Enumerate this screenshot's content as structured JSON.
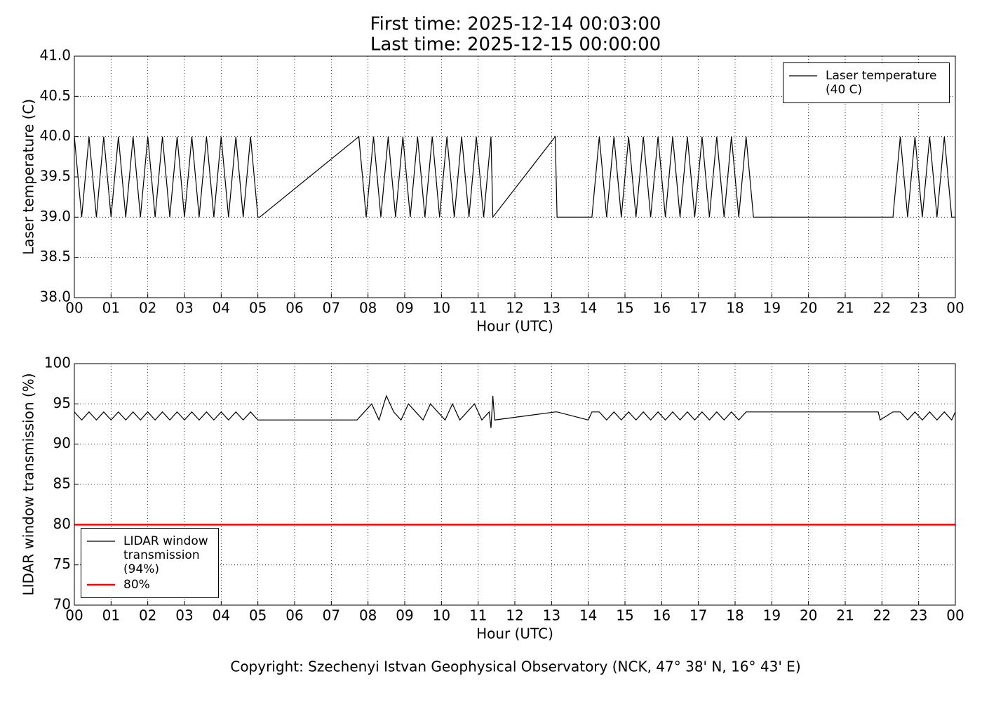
{
  "footer": "Copyright: Szechenyi Istvan Geophysical Observatory (NCK, 47° 38' N, 16° 43' E)",
  "chart_data": [
    {
      "type": "line",
      "title": "First time: 2025-12-14 00:03:00",
      "subtitle": "Last time: 2025-12-15 00:00:00",
      "xlabel": "Hour (UTC)",
      "ylabel": "Laser temperature (C)",
      "grid": true,
      "legend": "upper right",
      "xlim": [
        0,
        24
      ],
      "ylim": [
        38,
        41
      ],
      "xticks": [
        {
          "value": 0,
          "label": "00"
        },
        {
          "value": 1,
          "label": "01"
        },
        {
          "value": 2,
          "label": "02"
        },
        {
          "value": 3,
          "label": "03"
        },
        {
          "value": 4,
          "label": "04"
        },
        {
          "value": 5,
          "label": "05"
        },
        {
          "value": 6,
          "label": "06"
        },
        {
          "value": 7,
          "label": "07"
        },
        {
          "value": 8,
          "label": "08"
        },
        {
          "value": 9,
          "label": "09"
        },
        {
          "value": 10,
          "label": "10"
        },
        {
          "value": 11,
          "label": "11"
        },
        {
          "value": 12,
          "label": "12"
        },
        {
          "value": 13,
          "label": "13"
        },
        {
          "value": 14,
          "label": "14"
        },
        {
          "value": 15,
          "label": "15"
        },
        {
          "value": 16,
          "label": "16"
        },
        {
          "value": 17,
          "label": "17"
        },
        {
          "value": 18,
          "label": "18"
        },
        {
          "value": 19,
          "label": "19"
        },
        {
          "value": 20,
          "label": "20"
        },
        {
          "value": 21,
          "label": "21"
        },
        {
          "value": 22,
          "label": "22"
        },
        {
          "value": 23,
          "label": "23"
        },
        {
          "value": 24,
          "label": "00"
        }
      ],
      "yticks": [
        {
          "value": 38,
          "label": "38.0"
        },
        {
          "value": 38.5,
          "label": "38.5"
        },
        {
          "value": 39,
          "label": "39.0"
        },
        {
          "value": 39.5,
          "label": "39.5"
        },
        {
          "value": 40,
          "label": "40.0"
        },
        {
          "value": 40.5,
          "label": "40.5"
        },
        {
          "value": 41,
          "label": "41.0"
        }
      ],
      "series": [
        {
          "name": "Laser temperature (40 C)",
          "color": "#000000",
          "x": [
            0,
            0.2,
            0.4,
            0.6,
            0.8,
            1,
            1.2,
            1.4,
            1.6,
            1.8,
            2,
            2.2,
            2.4,
            2.6,
            2.8,
            3,
            3.2,
            3.4,
            3.6,
            3.8,
            4,
            4.2,
            4.4,
            4.6,
            4.8,
            5,
            5.05,
            7.75,
            7.95,
            8.15,
            8.35,
            8.55,
            8.75,
            8.95,
            9.15,
            9.35,
            9.55,
            9.75,
            9.95,
            10.15,
            10.35,
            10.55,
            10.75,
            10.95,
            11.15,
            11.35,
            11.4,
            13.1,
            13.15,
            14.1,
            14.3,
            14.5,
            14.7,
            14.9,
            15.1,
            15.3,
            15.5,
            15.7,
            15.9,
            16.1,
            16.3,
            16.5,
            16.7,
            16.9,
            17.1,
            17.3,
            17.5,
            17.7,
            17.9,
            18.1,
            18.3,
            18.5,
            22.3,
            22.5,
            22.7,
            22.9,
            23.1,
            23.3,
            23.5,
            23.7,
            23.9,
            24
          ],
          "values": [
            40,
            39,
            40,
            39,
            40,
            39,
            40,
            39,
            40,
            39,
            40,
            39,
            40,
            39,
            40,
            39,
            40,
            39,
            40,
            39,
            40,
            39,
            40,
            39,
            40,
            39,
            39,
            40,
            39,
            40,
            39,
            40,
            39,
            40,
            39,
            40,
            39,
            40,
            39,
            40,
            39,
            40,
            39,
            40,
            39,
            40,
            39,
            40,
            39,
            39,
            40,
            39,
            40,
            39,
            40,
            39,
            40,
            39,
            40,
            39,
            40,
            39,
            40,
            39,
            40,
            39,
            40,
            39,
            40,
            39,
            40,
            39,
            39,
            40,
            39,
            40,
            39,
            40,
            39,
            40,
            39,
            39
          ]
        }
      ]
    },
    {
      "type": "line",
      "xlabel": "Hour (UTC)",
      "ylabel": "LIDAR window transmission (%)",
      "grid": true,
      "legend": "lower left",
      "xlim": [
        0,
        24
      ],
      "ylim": [
        70,
        100
      ],
      "xticks": [
        {
          "value": 0,
          "label": "00"
        },
        {
          "value": 1,
          "label": "01"
        },
        {
          "value": 2,
          "label": "02"
        },
        {
          "value": 3,
          "label": "03"
        },
        {
          "value": 4,
          "label": "04"
        },
        {
          "value": 5,
          "label": "05"
        },
        {
          "value": 6,
          "label": "06"
        },
        {
          "value": 7,
          "label": "07"
        },
        {
          "value": 8,
          "label": "08"
        },
        {
          "value": 9,
          "label": "09"
        },
        {
          "value": 10,
          "label": "10"
        },
        {
          "value": 11,
          "label": "11"
        },
        {
          "value": 12,
          "label": "12"
        },
        {
          "value": 13,
          "label": "13"
        },
        {
          "value": 14,
          "label": "14"
        },
        {
          "value": 15,
          "label": "15"
        },
        {
          "value": 16,
          "label": "16"
        },
        {
          "value": 17,
          "label": "17"
        },
        {
          "value": 18,
          "label": "18"
        },
        {
          "value": 19,
          "label": "19"
        },
        {
          "value": 20,
          "label": "20"
        },
        {
          "value": 21,
          "label": "21"
        },
        {
          "value": 22,
          "label": "22"
        },
        {
          "value": 23,
          "label": "23"
        },
        {
          "value": 24,
          "label": "00"
        }
      ],
      "yticks": [
        70,
        75,
        80,
        85,
        90,
        95,
        100
      ],
      "series": [
        {
          "name": "LIDAR window transmission (94%)",
          "color": "#000000",
          "x": [
            0,
            0.2,
            0.4,
            0.6,
            0.8,
            1,
            1.2,
            1.4,
            1.6,
            1.8,
            2,
            2.2,
            2.4,
            2.6,
            2.8,
            3,
            3.2,
            3.4,
            3.6,
            3.8,
            4,
            4.2,
            4.4,
            4.6,
            4.8,
            5,
            5.05,
            7.7,
            7.9,
            8.1,
            8.3,
            8.5,
            8.7,
            8.9,
            9.1,
            9.3,
            9.5,
            9.7,
            9.9,
            10.1,
            10.3,
            10.5,
            10.7,
            10.9,
            11.1,
            11.3,
            11.35,
            11.4,
            11.45,
            13.1,
            13.15,
            14,
            14.1,
            14.3,
            14.5,
            14.7,
            14.9,
            15.1,
            15.3,
            15.5,
            15.7,
            15.9,
            16.1,
            16.3,
            16.5,
            16.7,
            16.9,
            17.1,
            17.3,
            17.5,
            17.7,
            17.9,
            18.1,
            18.3,
            18.4,
            21.9,
            21.95,
            22.3,
            22.5,
            22.7,
            22.9,
            23.1,
            23.3,
            23.5,
            23.7,
            23.9,
            24
          ],
          "values": [
            94,
            93,
            94,
            93,
            94,
            93,
            94,
            93,
            94,
            93,
            94,
            93,
            94,
            93,
            94,
            93,
            94,
            93,
            94,
            93,
            94,
            93,
            94,
            93,
            94,
            93,
            93,
            93,
            94,
            95,
            93,
            96,
            94,
            93,
            95,
            94,
            93,
            95,
            94,
            93,
            95,
            93,
            94,
            95,
            93,
            94,
            92,
            96,
            93,
            94,
            94,
            93,
            94,
            94,
            93,
            94,
            93,
            94,
            93,
            94,
            93,
            94,
            93,
            94,
            93,
            94,
            93,
            94,
            93,
            94,
            93,
            94,
            93,
            94,
            94,
            94,
            93,
            94,
            94,
            93,
            94,
            93,
            94,
            93,
            94,
            93,
            94
          ]
        },
        {
          "name": "80%",
          "color": "#ff0000",
          "x": [
            0,
            24
          ],
          "values": [
            80,
            80
          ]
        }
      ]
    }
  ]
}
